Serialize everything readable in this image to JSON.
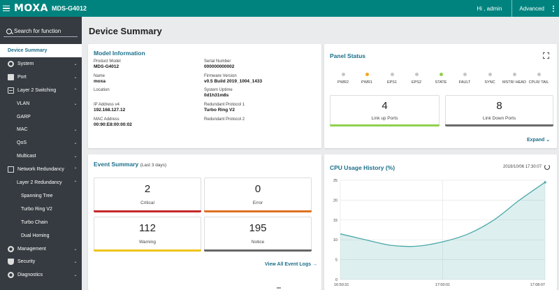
{
  "header": {
    "logo": "MOXA",
    "model": "MDS-G4012",
    "user": "Hi , admin",
    "advanced": "Advanced",
    "accent_color": "#00837e"
  },
  "sidebar": {
    "search_placeholder": "Search for function",
    "items": [
      {
        "label": "Device Summary",
        "icon": "",
        "chevron": "",
        "active": true
      },
      {
        "label": "System",
        "icon": "gear-icon",
        "chevron": "down"
      },
      {
        "label": "Port",
        "icon": "port-icon",
        "chevron": "down"
      },
      {
        "label": "Layer 2 Switching",
        "icon": "switch-icon",
        "chevron": "up"
      },
      {
        "label": "VLAN",
        "icon": "",
        "chevron": "down"
      },
      {
        "label": "GARP",
        "icon": "",
        "chevron": ""
      },
      {
        "label": "MAC",
        "icon": "",
        "chevron": "down"
      },
      {
        "label": "QoS",
        "icon": "",
        "chevron": "down"
      },
      {
        "label": "Multicast",
        "icon": "",
        "chevron": "down"
      },
      {
        "label": "Network Redundancy",
        "icon": "network-icon",
        "chevron": "up"
      },
      {
        "label": "Layer 2 Redundancy",
        "icon": "",
        "chevron": "up"
      },
      {
        "label": "Spanning Tree",
        "icon": "",
        "chevron": ""
      },
      {
        "label": "Turbo Ring V2",
        "icon": "",
        "chevron": ""
      },
      {
        "label": "Turbo Chain",
        "icon": "",
        "chevron": ""
      },
      {
        "label": "Dual Homing",
        "icon": "",
        "chevron": ""
      },
      {
        "label": "Management",
        "icon": "management-icon",
        "chevron": "down"
      },
      {
        "label": "Security",
        "icon": "security-icon",
        "chevron": "down"
      },
      {
        "label": "Diagnostics",
        "icon": "diagnostics-icon",
        "chevron": "down"
      }
    ]
  },
  "page_title": "Device Summary",
  "model_info": {
    "title": "Model Information",
    "left": [
      {
        "key": "Product Model",
        "value": "MDS-G4012"
      },
      {
        "key": "Name",
        "value": "moxa"
      },
      {
        "key": "Location",
        "value": ""
      },
      {
        "key": "IP Address v4",
        "value": "192.168.127.12"
      },
      {
        "key": "MAC Address",
        "value": "00:90:E8:00:00:02"
      }
    ],
    "right": [
      {
        "key": "Serial Number",
        "value": "000000000002"
      },
      {
        "key": "Firmware Version",
        "value": "v0.5 Build 2019_1004_1433"
      },
      {
        "key": "System Uptime",
        "value": "0d1h31m8s"
      },
      {
        "key": "Redundant Protocol 1",
        "value": "Turbo Ring V2"
      },
      {
        "key": "Redundant Protocol 2",
        "value": ""
      }
    ]
  },
  "panel_status": {
    "title": "Panel Status",
    "leds": [
      {
        "label": "PWR2",
        "color": "#c6c6c6"
      },
      {
        "label": "PWR1",
        "color": "#f5a623"
      },
      {
        "label": "EPS1",
        "color": "#c6c6c6"
      },
      {
        "label": "EPS2",
        "color": "#c6c6c6"
      },
      {
        "label": "STATE",
        "color": "#8fd14f"
      },
      {
        "label": "FAULT",
        "color": "#c6c6c6"
      },
      {
        "label": "SYNC",
        "color": "#c6c6c6"
      },
      {
        "label": "MSTR/ HEAD",
        "color": "#c6c6c6"
      },
      {
        "label": "CPLR/ TAIL",
        "color": "#c6c6c6"
      }
    ],
    "link_up": {
      "count": "4",
      "label": "Link up Ports",
      "color": "#8fd14f"
    },
    "link_down": {
      "count": "8",
      "label": "Link Down Ports",
      "color": "#6a6a6a"
    },
    "expand": "Expand"
  },
  "event_summary": {
    "title": "Event Summary",
    "subtitle": "(Last 3 days)",
    "boxes": [
      {
        "count": "2",
        "label": "Critical",
        "color": "#c62828"
      },
      {
        "count": "0",
        "label": "Error",
        "color": "#e07020"
      },
      {
        "count": "112",
        "label": "Warning",
        "color": "#f0c419"
      },
      {
        "count": "195",
        "label": "Notice",
        "color": "#666666"
      }
    ],
    "view_all": "View All Event Logs"
  },
  "cpu": {
    "title": "CPU Usage History (%)",
    "timestamp": "2019/10/06 17:30:07"
  },
  "chart_data": {
    "type": "area",
    "title": "CPU Usage History (%)",
    "ylim": [
      0,
      25
    ],
    "yticks": [
      0,
      5,
      10,
      15,
      20,
      25
    ],
    "xticks": [
      "16:50:31",
      "17:00:01",
      "17:08:07"
    ],
    "x": [
      "16:50:31",
      "16:52:30",
      "16:55:00",
      "16:57:00",
      "17:00:01",
      "17:02:00",
      "17:04:00",
      "17:06:00",
      "17:08:07"
    ],
    "series": [
      {
        "values": [
          11.5,
          10.0,
          8.6,
          8.4,
          9.5,
          11.5,
          15.0,
          20.0,
          24.5
        ],
        "color": "#4aa8a8"
      }
    ],
    "grid": true
  }
}
